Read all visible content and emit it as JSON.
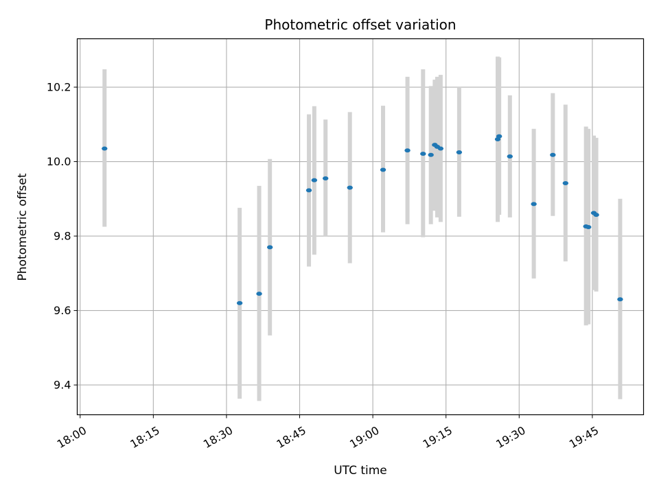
{
  "chart_data": {
    "type": "scatter",
    "title": "Photometric offset variation",
    "xlabel": "UTC time",
    "ylabel": "Photometric offset",
    "x_unit": "minutes",
    "x_ticks": [
      {
        "value": 0,
        "label": "18:00"
      },
      {
        "value": 15,
        "label": "18:15"
      },
      {
        "value": 30,
        "label": "18:30"
      },
      {
        "value": 45,
        "label": "18:45"
      },
      {
        "value": 60,
        "label": "19:00"
      },
      {
        "value": 75,
        "label": "19:15"
      },
      {
        "value": 90,
        "label": "19:30"
      },
      {
        "value": 105,
        "label": "19:45"
      }
    ],
    "y_ticks": [
      9.4,
      9.6,
      9.8,
      10.0,
      10.2
    ],
    "xlim": [
      -0.6,
      115.5
    ],
    "ylim": [
      9.32,
      10.33
    ],
    "grid": true,
    "colors": {
      "point": "#1f77b4",
      "errorbar": "#d3d3d3",
      "grid": "#b0b0b0"
    },
    "points": [
      {
        "x": 5.0,
        "y": 10.035,
        "ylow": 9.825,
        "yhigh": 10.248
      },
      {
        "x": 32.7,
        "y": 9.62,
        "ylow": 9.363,
        "yhigh": 9.876
      },
      {
        "x": 36.7,
        "y": 9.645,
        "ylow": 9.357,
        "yhigh": 9.935
      },
      {
        "x": 38.9,
        "y": 9.77,
        "ylow": 9.533,
        "yhigh": 10.007
      },
      {
        "x": 46.9,
        "y": 9.923,
        "ylow": 9.718,
        "yhigh": 10.127
      },
      {
        "x": 48.0,
        "y": 9.95,
        "ylow": 9.75,
        "yhigh": 10.149
      },
      {
        "x": 50.3,
        "y": 9.955,
        "ylow": 9.8,
        "yhigh": 10.113
      },
      {
        "x": 55.3,
        "y": 9.93,
        "ylow": 9.727,
        "yhigh": 10.133
      },
      {
        "x": 62.1,
        "y": 9.978,
        "ylow": 9.81,
        "yhigh": 10.15
      },
      {
        "x": 67.1,
        "y": 10.03,
        "ylow": 9.832,
        "yhigh": 10.228
      },
      {
        "x": 70.3,
        "y": 10.021,
        "ylow": 9.797,
        "yhigh": 10.248
      },
      {
        "x": 71.9,
        "y": 10.018,
        "ylow": 9.832,
        "yhigh": 10.203
      },
      {
        "x": 72.7,
        "y": 10.045,
        "ylow": 9.868,
        "yhigh": 10.22
      },
      {
        "x": 73.2,
        "y": 10.04,
        "ylow": 9.85,
        "yhigh": 10.228
      },
      {
        "x": 73.9,
        "y": 10.035,
        "ylow": 9.838,
        "yhigh": 10.233
      },
      {
        "x": 77.7,
        "y": 10.025,
        "ylow": 9.852,
        "yhigh": 10.2
      },
      {
        "x": 85.6,
        "y": 10.06,
        "ylow": 9.838,
        "yhigh": 10.282
      },
      {
        "x": 85.9,
        "y": 10.068,
        "ylow": 9.857,
        "yhigh": 10.28
      },
      {
        "x": 88.1,
        "y": 10.014,
        "ylow": 9.85,
        "yhigh": 10.178
      },
      {
        "x": 93.0,
        "y": 9.886,
        "ylow": 9.686,
        "yhigh": 10.088
      },
      {
        "x": 96.9,
        "y": 10.018,
        "ylow": 9.854,
        "yhigh": 10.184
      },
      {
        "x": 99.5,
        "y": 9.942,
        "ylow": 9.732,
        "yhigh": 10.153
      },
      {
        "x": 103.7,
        "y": 9.826,
        "ylow": 9.56,
        "yhigh": 10.094
      },
      {
        "x": 104.2,
        "y": 9.824,
        "ylow": 9.563,
        "yhigh": 10.088
      },
      {
        "x": 105.3,
        "y": 9.862,
        "ylow": 9.655,
        "yhigh": 10.07
      },
      {
        "x": 105.8,
        "y": 9.857,
        "ylow": 9.651,
        "yhigh": 10.064
      },
      {
        "x": 110.7,
        "y": 9.63,
        "ylow": 9.362,
        "yhigh": 9.9
      }
    ]
  }
}
